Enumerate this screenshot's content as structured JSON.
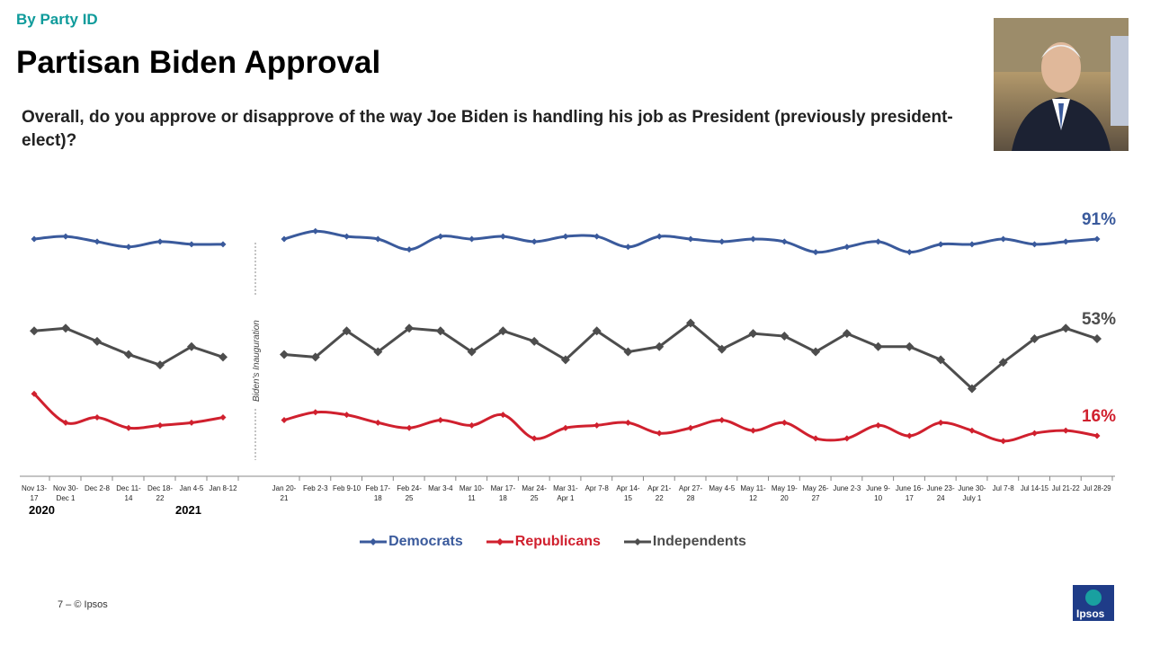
{
  "header": {
    "kicker": "By Party ID",
    "title": "Partisan Biden Approval",
    "question": "Overall, do you approve or disapprove of the way Joe Biden is handling his job as President (previously president-elect)?"
  },
  "footer": {
    "page": "7 –  © Ipsos",
    "logo": "Ipsos"
  },
  "chart_data": {
    "type": "line",
    "annotation": "Biden's Inauguration",
    "year_labels": [
      "2020",
      "2021"
    ],
    "categories_pre": [
      [
        "Nov 13-",
        "17"
      ],
      [
        "Nov 30-",
        "Dec 1"
      ],
      [
        "Dec 2-8",
        ""
      ],
      [
        "Dec 11-",
        "14"
      ],
      [
        "Dec 18-",
        "22"
      ],
      [
        "Jan 4-5",
        ""
      ],
      [
        "Jan 8-12",
        ""
      ]
    ],
    "categories_post": [
      [
        "Jan 20-",
        "21"
      ],
      [
        "Feb 2-3",
        ""
      ],
      [
        "Feb 9-10",
        ""
      ],
      [
        "Feb 17-",
        "18"
      ],
      [
        "Feb 24-",
        "25"
      ],
      [
        "Mar 3-4",
        ""
      ],
      [
        "Mar 10-",
        "11"
      ],
      [
        "Mar 17-",
        "18"
      ],
      [
        "Mar 24-",
        "25"
      ],
      [
        "Mar 31-",
        "Apr 1"
      ],
      [
        "Apr 7-8",
        ""
      ],
      [
        "Apr 14-",
        "15"
      ],
      [
        "Apr 21-",
        "22"
      ],
      [
        "Apr 27-",
        "28"
      ],
      [
        "May 4-5",
        ""
      ],
      [
        "May 11-",
        "12"
      ],
      [
        "May 19-",
        "20"
      ],
      [
        "May 26-",
        "27"
      ],
      [
        "June 2-3",
        ""
      ],
      [
        "June 9-",
        "10"
      ],
      [
        "June 16-",
        "17"
      ],
      [
        "June 23-",
        "24"
      ],
      [
        "June 30-",
        "July 1"
      ],
      [
        "Jul 7-8",
        ""
      ],
      [
        "Jul 14-15",
        ""
      ],
      [
        "Jul 21-22",
        ""
      ],
      [
        "Jul 28-29",
        ""
      ]
    ],
    "series": [
      {
        "name": "Democrats",
        "color": "#3a5a9c",
        "end_label": "91%",
        "pre": [
          91,
          92,
          90,
          88,
          90,
          89,
          89
        ],
        "post": [
          91,
          94,
          92,
          91,
          87,
          92,
          91,
          92,
          90,
          92,
          92,
          88,
          92,
          91,
          90,
          91,
          90,
          86,
          88,
          90,
          86,
          89,
          89,
          91,
          89,
          90,
          91
        ]
      },
      {
        "name": "Republicans",
        "color": "#d0202e",
        "end_label": "16%",
        "pre": [
          32,
          21,
          23,
          19,
          20,
          21,
          23
        ],
        "post": [
          22,
          25,
          24,
          21,
          19,
          22,
          20,
          24,
          15,
          19,
          20,
          21,
          17,
          19,
          22,
          18,
          21,
          15,
          15,
          20,
          16,
          21,
          18,
          14,
          17,
          18,
          16
        ]
      },
      {
        "name": "Independents",
        "color": "#4d4d4d",
        "end_label": "53%",
        "pre": [
          56,
          57,
          52,
          47,
          43,
          50,
          46
        ],
        "post": [
          47,
          46,
          56,
          48,
          57,
          56,
          48,
          56,
          52,
          45,
          56,
          48,
          50,
          59,
          49,
          55,
          54,
          48,
          55,
          50,
          50,
          45,
          34,
          44,
          53,
          57,
          53
        ]
      }
    ]
  }
}
